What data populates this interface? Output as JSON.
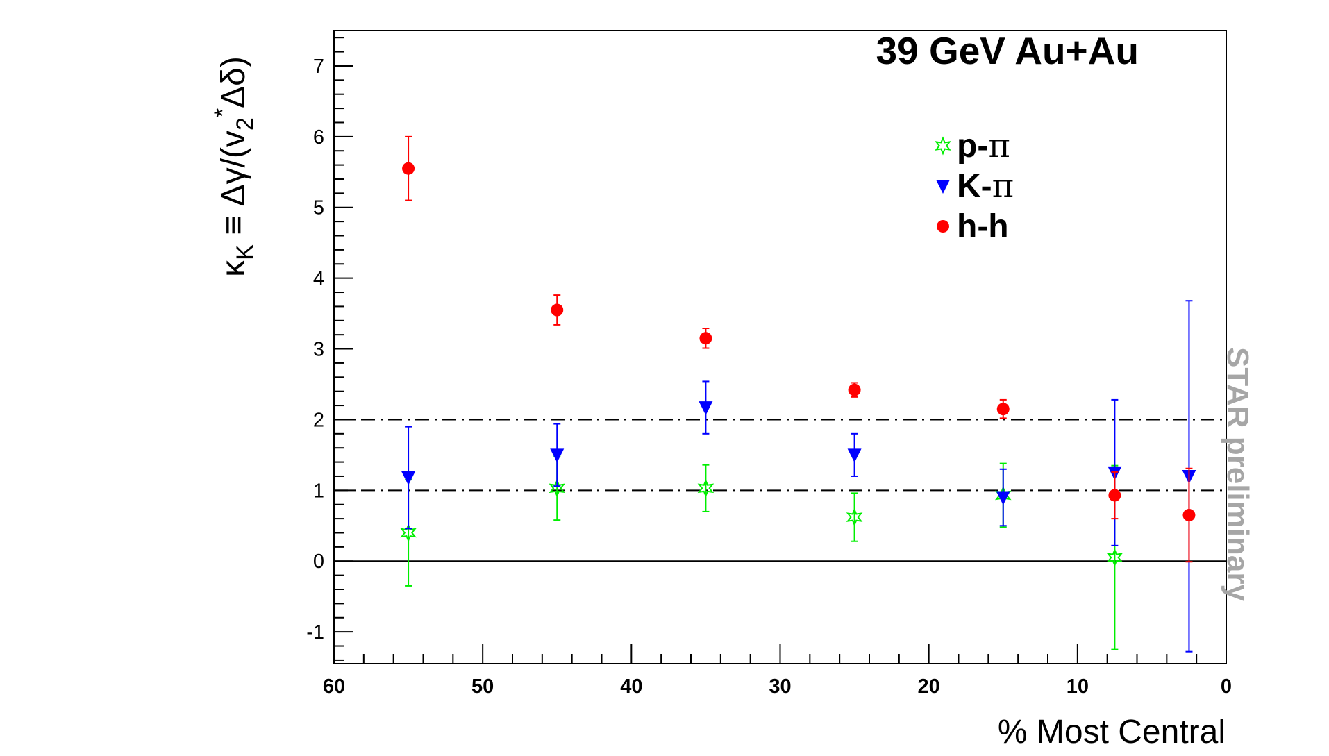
{
  "chart_data": {
    "type": "scatter",
    "title": "39 GeV Au+Au",
    "xlabel": "% Most Central",
    "ylabel": "κ_K ≡ Δγ/(v_2 * Δδ)",
    "ylabel_parts": {
      "kappa": "κ",
      "kappa_sub": "K",
      "mid": " ≡ Δγ/(v",
      "v_sub": "2",
      "sup": "*",
      "tail": "Δδ)"
    },
    "xlim": [
      60,
      0
    ],
    "ylim": [
      -1.45,
      7.5
    ],
    "x_reversed": true,
    "grid": false,
    "x_ticks": [
      "60",
      "50",
      "40",
      "30",
      "20",
      "10",
      "0"
    ],
    "y_ticks": [
      "-1",
      "0",
      "1",
      "2",
      "3",
      "4",
      "5",
      "6",
      "7"
    ],
    "reference_lines": [
      {
        "y": 0,
        "style": "solid"
      },
      {
        "y": 1,
        "style": "dash-dot"
      },
      {
        "y": 2,
        "style": "dash-dot"
      }
    ],
    "legend_placement": "top-right",
    "watermark": "STAR preliminary",
    "series": [
      {
        "name": "p-π",
        "name_parts": [
          "p-",
          "π"
        ],
        "marker": "open-star",
        "color": "#00ee00",
        "points": [
          {
            "x": 55,
            "y": 0.4,
            "err": 0.75
          },
          {
            "x": 45,
            "y": 1.03,
            "err": 0.45
          },
          {
            "x": 35,
            "y": 1.03,
            "err": 0.33
          },
          {
            "x": 25,
            "y": 0.62,
            "err": 0.34
          },
          {
            "x": 15,
            "y": 0.93,
            "err": 0.45
          },
          {
            "x": 7.5,
            "y": 0.05,
            "err": 1.3
          }
        ]
      },
      {
        "name": "K-π",
        "name_parts": [
          "K-",
          "π"
        ],
        "marker": "filled-triangle-down",
        "color": "#0000ff",
        "points": [
          {
            "x": 55,
            "y": 1.18,
            "err": 0.72
          },
          {
            "x": 45,
            "y": 1.5,
            "err": 0.44
          },
          {
            "x": 35,
            "y": 2.17,
            "err": 0.37
          },
          {
            "x": 25,
            "y": 1.5,
            "err": 0.3
          },
          {
            "x": 15,
            "y": 0.9,
            "err": 0.4
          },
          {
            "x": 7.5,
            "y": 1.25,
            "err": 1.03
          },
          {
            "x": 2.5,
            "y": 1.2,
            "err": 2.48
          }
        ]
      },
      {
        "name": "h-h",
        "name_parts": [
          "h-h",
          ""
        ],
        "marker": "filled-circle",
        "color": "#ff0000",
        "points": [
          {
            "x": 55,
            "y": 5.55,
            "err": 0.45
          },
          {
            "x": 45,
            "y": 3.55,
            "err": 0.21
          },
          {
            "x": 35,
            "y": 3.15,
            "err": 0.14
          },
          {
            "x": 25,
            "y": 2.42,
            "err": 0.1
          },
          {
            "x": 15,
            "y": 2.15,
            "err": 0.13
          },
          {
            "x": 7.5,
            "y": 0.93,
            "err": 0.33
          },
          {
            "x": 2.5,
            "y": 0.65,
            "err": 0.66
          }
        ]
      }
    ]
  }
}
